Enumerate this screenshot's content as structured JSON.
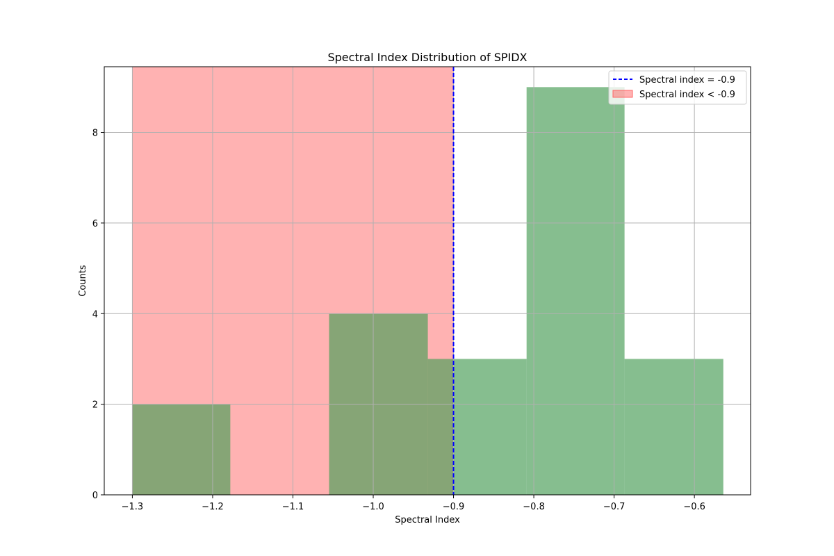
{
  "chart_data": {
    "type": "bar",
    "title": "Spectral Index Distribution of SPIDX",
    "xlabel": "Spectral Index",
    "ylabel": "Counts",
    "xlim": [
      -1.335,
      -0.53
    ],
    "ylim": [
      0,
      9.45
    ],
    "x_ticks": [
      -1.3,
      -1.2,
      -1.1,
      -1.0,
      -0.9,
      -0.8,
      -0.7,
      -0.6
    ],
    "x_tick_labels": [
      "−1.3",
      "−1.2",
      "−1.1",
      "−1.0",
      "−0.9",
      "−0.8",
      "−0.7",
      "−0.6"
    ],
    "y_ticks": [
      0,
      2,
      4,
      6,
      8
    ],
    "y_tick_labels": [
      "0",
      "2",
      "4",
      "6",
      "8"
    ],
    "grid": true,
    "legend_position": "top-right",
    "bar_color": "#4c9f5a",
    "bins": [
      {
        "x0": -1.3,
        "x1": -1.178,
        "count": 2
      },
      {
        "x0": -1.178,
        "x1": -1.055,
        "count": 0
      },
      {
        "x0": -1.055,
        "x1": -0.932,
        "count": 4
      },
      {
        "x0": -0.932,
        "x1": -0.809,
        "count": 3
      },
      {
        "x0": -0.809,
        "x1": -0.687,
        "count": 9
      },
      {
        "x0": -0.687,
        "x1": -0.564,
        "count": 3
      }
    ],
    "shaded_region": {
      "x0": -1.3,
      "x1": -0.9,
      "color": "#ff6666",
      "label": "Spectral index < -0.9"
    },
    "threshold_line": {
      "x": -0.9,
      "color": "#0000ff",
      "label": "Spectral index = -0.9"
    }
  }
}
